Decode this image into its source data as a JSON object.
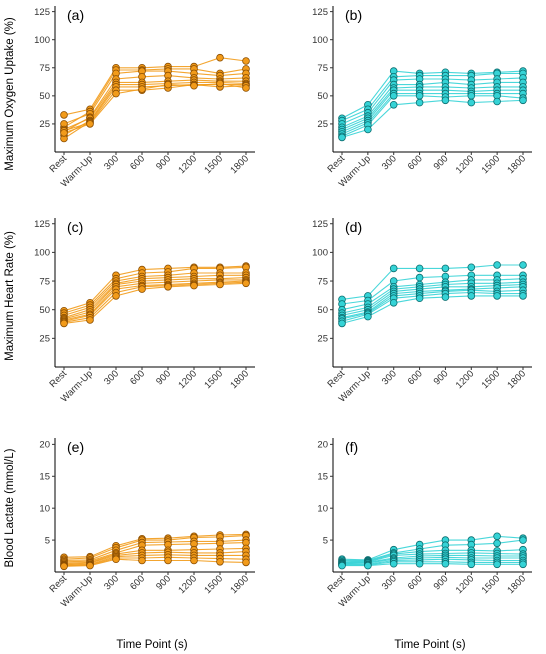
{
  "colors": {
    "orange": "#f29b1a",
    "orange_edge": "#8a4d00",
    "cyan": "#35d3d6",
    "cyan_edge": "#0c6e70"
  },
  "labels": {
    "y_vo2": "Maximum Oxygen Uptake (%)",
    "y_hr": "Maximum Heart Rate (%)",
    "y_lac": "Blood Lactate (mmol/L)",
    "x_title": "Time Point (s)"
  },
  "chart_data": [
    {
      "type": "line",
      "panel": "(a)",
      "categories": [
        "Rest",
        "Warm-Up",
        "300",
        "600",
        "900",
        "1200",
        "1500",
        "1800"
      ],
      "ylabel": "Maximum Oxygen Uptake (%)",
      "xlabel": "",
      "ylim": [
        0,
        130
      ],
      "yticks": [
        25,
        50,
        75,
        100,
        125
      ],
      "grid": false,
      "color": "#f29b1a",
      "series": [
        {
          "values": [
            33,
            38,
            75,
            75,
            76,
            76,
            84,
            81
          ]
        },
        {
          "values": [
            22,
            36,
            73,
            73,
            74,
            74,
            70,
            74
          ]
        },
        {
          "values": [
            25,
            34,
            70,
            72,
            72,
            70,
            68,
            70
          ]
        },
        {
          "values": [
            18,
            31,
            65,
            67,
            68,
            66,
            65,
            66
          ]
        },
        {
          "values": [
            20,
            30,
            62,
            62,
            63,
            64,
            63,
            63
          ]
        },
        {
          "values": [
            15,
            28,
            60,
            60,
            61,
            62,
            62,
            61
          ]
        },
        {
          "values": [
            12,
            27,
            58,
            58,
            59,
            60,
            60,
            60
          ]
        },
        {
          "values": [
            19,
            26,
            55,
            55,
            57,
            60,
            58,
            59
          ]
        },
        {
          "values": [
            17,
            25,
            52,
            56,
            60,
            59,
            61,
            57
          ]
        }
      ]
    },
    {
      "type": "line",
      "panel": "(b)",
      "categories": [
        "Rest",
        "Warm-Up",
        "300",
        "600",
        "900",
        "1200",
        "1500",
        "1800"
      ],
      "ylabel": "",
      "xlabel": "",
      "ylim": [
        0,
        130
      ],
      "yticks": [
        25,
        50,
        75,
        100,
        125
      ],
      "grid": false,
      "color": "#35d3d6",
      "series": [
        {
          "values": [
            30,
            42,
            72,
            70,
            71,
            70,
            71,
            72
          ]
        },
        {
          "values": [
            28,
            38,
            67,
            68,
            68,
            68,
            70,
            70
          ]
        },
        {
          "values": [
            25,
            35,
            64,
            65,
            65,
            64,
            65,
            66
          ]
        },
        {
          "values": [
            22,
            32,
            60,
            60,
            62,
            60,
            62,
            62
          ]
        },
        {
          "values": [
            20,
            30,
            57,
            58,
            58,
            57,
            58,
            58
          ]
        },
        {
          "values": [
            18,
            28,
            55,
            55,
            55,
            54,
            55,
            55
          ]
        },
        {
          "values": [
            16,
            26,
            52,
            52,
            52,
            52,
            52,
            52
          ]
        },
        {
          "values": [
            14,
            24,
            50,
            50,
            49,
            50,
            50,
            48
          ]
        },
        {
          "values": [
            13,
            20,
            42,
            44,
            46,
            44,
            45,
            46
          ]
        }
      ]
    },
    {
      "type": "line",
      "panel": "(c)",
      "categories": [
        "Rest",
        "Warm-Up",
        "300",
        "600",
        "900",
        "1200",
        "1500",
        "1800"
      ],
      "ylabel": "Maximum Heart Rate (%)",
      "xlabel": "",
      "ylim": [
        0,
        130
      ],
      "yticks": [
        25,
        50,
        75,
        100,
        125
      ],
      "grid": false,
      "color": "#f29b1a",
      "series": [
        {
          "values": [
            49,
            56,
            80,
            85,
            86,
            87,
            87,
            88
          ]
        },
        {
          "values": [
            47,
            54,
            77,
            82,
            83,
            86,
            86,
            87
          ]
        },
        {
          "values": [
            45,
            52,
            75,
            79,
            80,
            82,
            82,
            82
          ]
        },
        {
          "values": [
            43,
            50,
            73,
            77,
            78,
            79,
            80,
            80
          ]
        },
        {
          "values": [
            42,
            48,
            72,
            75,
            76,
            77,
            77,
            78
          ]
        },
        {
          "values": [
            41,
            46,
            70,
            73,
            74,
            75,
            76,
            76
          ]
        },
        {
          "values": [
            40,
            45,
            68,
            71,
            72,
            73,
            74,
            75
          ]
        },
        {
          "values": [
            39,
            43,
            65,
            70,
            71,
            72,
            73,
            74
          ]
        },
        {
          "values": [
            38,
            41,
            62,
            68,
            70,
            71,
            72,
            73
          ]
        }
      ]
    },
    {
      "type": "line",
      "panel": "(d)",
      "categories": [
        "Rest",
        "Warm-Up",
        "300",
        "600",
        "900",
        "1200",
        "1500",
        "1800"
      ],
      "ylabel": "",
      "xlabel": "",
      "ylim": [
        0,
        130
      ],
      "yticks": [
        25,
        50,
        75,
        100,
        125
      ],
      "grid": false,
      "color": "#35d3d6",
      "series": [
        {
          "values": [
            59,
            62,
            86,
            86,
            86,
            87,
            89,
            89
          ]
        },
        {
          "values": [
            55,
            58,
            75,
            78,
            79,
            80,
            80,
            80
          ]
        },
        {
          "values": [
            50,
            55,
            70,
            72,
            74,
            76,
            76,
            77
          ]
        },
        {
          "values": [
            47,
            52,
            68,
            70,
            72,
            73,
            73,
            74
          ]
        },
        {
          "values": [
            45,
            50,
            66,
            68,
            70,
            70,
            71,
            72
          ]
        },
        {
          "values": [
            43,
            48,
            64,
            66,
            67,
            68,
            69,
            70
          ]
        },
        {
          "values": [
            42,
            47,
            62,
            64,
            66,
            67,
            66,
            67
          ]
        },
        {
          "values": [
            40,
            46,
            60,
            62,
            64,
            65,
            64,
            64
          ]
        },
        {
          "values": [
            38,
            44,
            56,
            60,
            61,
            62,
            62,
            62
          ]
        }
      ]
    },
    {
      "type": "line",
      "panel": "(e)",
      "categories": [
        "Rest",
        "Warm-Up",
        "300",
        "600",
        "900",
        "1200",
        "1500",
        "1800"
      ],
      "ylabel": "Blood Lactate (mmol/L)",
      "xlabel": "Time Point (s)",
      "ylim": [
        0,
        21
      ],
      "yticks": [
        5,
        10,
        15,
        20
      ],
      "grid": false,
      "color": "#f29b1a",
      "series": [
        {
          "values": [
            2.3,
            2.4,
            4.1,
            5.2,
            5.3,
            5.6,
            5.8,
            5.9
          ]
        },
        {
          "values": [
            2.0,
            2.2,
            3.8,
            5.0,
            5.0,
            5.4,
            5.5,
            5.7
          ]
        },
        {
          "values": [
            1.8,
            1.9,
            3.4,
            4.6,
            4.7,
            4.8,
            4.8,
            5.0
          ]
        },
        {
          "values": [
            1.6,
            1.7,
            3.0,
            4.2,
            4.3,
            4.4,
            4.5,
            4.6
          ]
        },
        {
          "values": [
            1.4,
            1.5,
            2.8,
            3.4,
            3.4,
            3.5,
            3.6,
            3.7
          ]
        },
        {
          "values": [
            1.2,
            1.4,
            2.6,
            3.0,
            3.1,
            3.0,
            3.0,
            3.2
          ]
        },
        {
          "values": [
            1.1,
            1.2,
            2.4,
            2.6,
            2.7,
            2.6,
            2.6,
            2.6
          ]
        },
        {
          "values": [
            1.0,
            1.1,
            2.2,
            2.2,
            2.3,
            2.2,
            2.1,
            2.0
          ]
        },
        {
          "values": [
            0.9,
            1.0,
            2.0,
            1.8,
            1.8,
            1.8,
            1.6,
            1.5
          ]
        }
      ]
    },
    {
      "type": "line",
      "panel": "(f)",
      "categories": [
        "Rest",
        "Warm-Up",
        "300",
        "600",
        "900",
        "1200",
        "1500",
        "1800"
      ],
      "ylabel": "",
      "xlabel": "Time Point (s)",
      "ylim": [
        0,
        21
      ],
      "yticks": [
        5,
        10,
        15,
        20
      ],
      "grid": false,
      "color": "#35d3d6",
      "series": [
        {
          "values": [
            2.0,
            1.9,
            3.5,
            4.3,
            5.0,
            5.0,
            5.6,
            5.3
          ]
        },
        {
          "values": [
            1.8,
            1.8,
            3.0,
            3.6,
            4.2,
            4.3,
            4.5,
            5.0
          ]
        },
        {
          "values": [
            1.6,
            1.7,
            2.8,
            3.2,
            3.4,
            3.4,
            3.3,
            3.5
          ]
        },
        {
          "values": [
            1.5,
            1.6,
            2.6,
            2.8,
            2.9,
            3.0,
            2.9,
            2.8
          ]
        },
        {
          "values": [
            1.4,
            1.5,
            2.2,
            2.5,
            2.6,
            2.6,
            2.5,
            2.5
          ]
        },
        {
          "values": [
            1.3,
            1.4,
            2.0,
            2.2,
            2.3,
            2.2,
            2.2,
            2.2
          ]
        },
        {
          "values": [
            1.2,
            1.2,
            1.8,
            1.9,
            2.0,
            1.9,
            1.8,
            1.8
          ]
        },
        {
          "values": [
            1.1,
            1.1,
            1.6,
            1.6,
            1.6,
            1.5,
            1.5,
            1.5
          ]
        },
        {
          "values": [
            1.0,
            1.0,
            1.3,
            1.3,
            1.3,
            1.2,
            1.2,
            1.2
          ]
        }
      ]
    }
  ]
}
